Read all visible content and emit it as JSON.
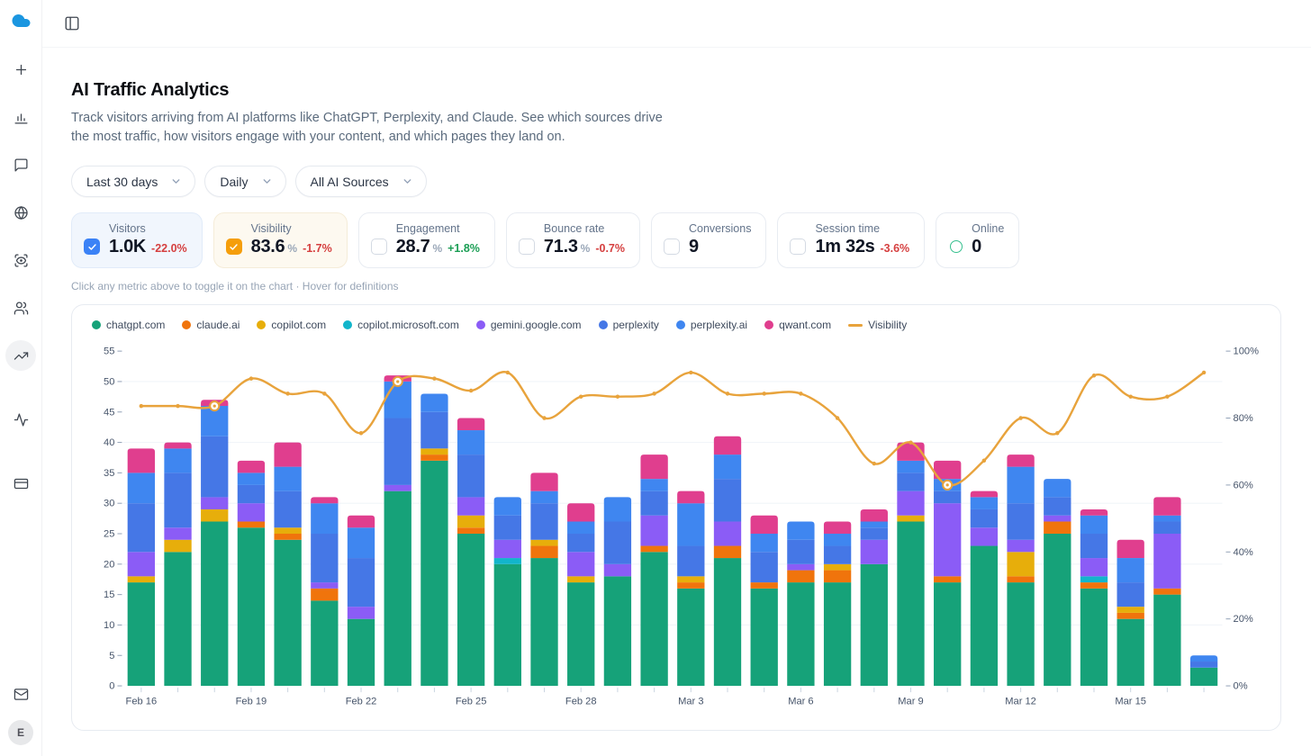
{
  "sidebar": {
    "logo": "cloud-logo",
    "items": [
      {
        "icon": "plus-icon"
      },
      {
        "icon": "bar-chart-icon"
      },
      {
        "icon": "message-icon"
      },
      {
        "icon": "globe-icon"
      },
      {
        "icon": "scan-eye-icon"
      },
      {
        "icon": "users-icon"
      },
      {
        "icon": "trending-up-icon",
        "active": true
      },
      {
        "icon": "activity-icon"
      },
      {
        "icon": "credit-card-icon"
      }
    ],
    "bottom": {
      "mail_icon": "mail-icon",
      "avatar_initial": "E"
    }
  },
  "topbar": {
    "toggle_icon": "panel-left-icon"
  },
  "header": {
    "title": "AI Traffic Analytics",
    "description": "Track visitors arriving from AI platforms like ChatGPT, Perplexity, and Claude. See which sources drive the most traffic, how visitors engage with your content, and which pages they land on."
  },
  "filters": {
    "items": [
      {
        "label": "Last 30 days"
      },
      {
        "label": "Daily"
      },
      {
        "label": "All AI Sources"
      }
    ]
  },
  "metrics": {
    "items": [
      {
        "label": "Visitors",
        "value": "1.0K",
        "delta": "-22.0%",
        "delta_color": "red",
        "selected": true,
        "accent": "#3b82f6"
      },
      {
        "label": "Visibility",
        "value": "83.6",
        "suffix": "%",
        "delta": "-1.7%",
        "delta_color": "red",
        "selected": true,
        "accent": "#f59e0b"
      },
      {
        "label": "Engagement",
        "value": "28.7",
        "suffix": "%",
        "delta": "+1.8%",
        "delta_color": "green",
        "selected": false
      },
      {
        "label": "Bounce rate",
        "value": "71.3",
        "suffix": "%",
        "delta": "-0.7%",
        "delta_color": "red",
        "selected": false
      },
      {
        "label": "Conversions",
        "value": "9",
        "selected": false
      },
      {
        "label": "Session time",
        "value": "1m 32s",
        "delta": "-3.6%",
        "delta_color": "red",
        "selected": false
      },
      {
        "label": "Online",
        "value": "0",
        "indicator": "online",
        "indicator_color": "#37c08f"
      }
    ]
  },
  "hint": {
    "text": "Click any metric above to toggle it on the chart · Hover for definitions"
  },
  "chart_data": {
    "type": "bar",
    "subtype": "stacked-bars-with-line",
    "dates": [
      "Feb 16",
      "Feb 17",
      "Feb 18",
      "Feb 19",
      "Feb 20",
      "Feb 21",
      "Feb 22",
      "Feb 23",
      "Feb 24",
      "Feb 25",
      "Feb 26",
      "Feb 27",
      "Feb 28",
      "Mar 1",
      "Mar 2",
      "Mar 3",
      "Mar 4",
      "Mar 5",
      "Mar 6",
      "Mar 7",
      "Mar 8",
      "Mar 9",
      "Mar 10",
      "Mar 11",
      "Mar 12",
      "Mar 13",
      "Mar 14",
      "Mar 15",
      "Mar 16",
      "Mar 17"
    ],
    "x_label_every": 3,
    "left_axis": {
      "min": 0,
      "max": 55,
      "step": 5
    },
    "right_axis": {
      "min": 0,
      "max": 100,
      "step": 20,
      "suffix": "%"
    },
    "grid_values": [
      10,
      20,
      30,
      40,
      50
    ],
    "series": [
      {
        "name": "chatgpt.com",
        "color": "#16a279",
        "values": [
          17,
          22,
          27,
          26,
          24,
          14,
          11,
          32,
          37,
          25,
          20,
          21,
          17,
          18,
          22,
          16,
          21,
          16,
          17,
          17,
          20,
          27,
          17,
          23,
          17,
          25,
          16,
          11,
          15,
          3
        ]
      },
      {
        "name": "claude.ai",
        "color": "#f0740c",
        "values": [
          0,
          0,
          0,
          1,
          1,
          2,
          0,
          0,
          1,
          1,
          0,
          2,
          0,
          0,
          1,
          1,
          2,
          1,
          2,
          2,
          0,
          0,
          1,
          0,
          1,
          2,
          1,
          1,
          1,
          0
        ]
      },
      {
        "name": "copilot.com",
        "color": "#e7ae0b",
        "values": [
          1,
          2,
          2,
          0,
          1,
          0,
          0,
          0,
          1,
          2,
          0,
          1,
          1,
          0,
          0,
          1,
          0,
          0,
          0,
          1,
          0,
          1,
          0,
          0,
          4,
          0,
          0,
          1,
          0,
          0
        ]
      },
      {
        "name": "copilot.microsoft.com",
        "color": "#12b5cb",
        "values": [
          0,
          0,
          0,
          0,
          0,
          0,
          0,
          0,
          0,
          0,
          1,
          0,
          0,
          0,
          0,
          0,
          0,
          0,
          0,
          0,
          0,
          0,
          0,
          0,
          0,
          0,
          1,
          0,
          0,
          0
        ]
      },
      {
        "name": "gemini.google.com",
        "color": "#8b5cf6",
        "values": [
          4,
          2,
          2,
          3,
          0,
          1,
          2,
          1,
          0,
          3,
          3,
          0,
          4,
          2,
          5,
          0,
          4,
          0,
          1,
          0,
          4,
          4,
          12,
          3,
          2,
          1,
          3,
          0,
          9,
          0
        ]
      },
      {
        "name": "perplexity",
        "color": "#4577e6",
        "values": [
          8,
          9,
          10,
          3,
          6,
          8,
          8,
          11,
          6,
          7,
          4,
          6,
          3,
          7,
          4,
          5,
          7,
          5,
          4,
          3,
          2,
          3,
          2,
          3,
          6,
          3,
          4,
          4,
          2,
          1
        ]
      },
      {
        "name": "perplexity.ai",
        "color": "#3f86f0",
        "values": [
          5,
          4,
          5,
          2,
          4,
          5,
          5,
          6,
          3,
          4,
          3,
          2,
          2,
          4,
          2,
          7,
          4,
          3,
          3,
          2,
          1,
          2,
          2,
          2,
          6,
          3,
          3,
          4,
          1,
          1
        ]
      },
      {
        "name": "qwant.com",
        "color": "#e03e8e",
        "values": [
          4,
          1,
          1,
          2,
          4,
          1,
          2,
          1,
          0,
          2,
          0,
          3,
          3,
          0,
          4,
          2,
          3,
          3,
          0,
          2,
          2,
          3,
          3,
          1,
          2,
          0,
          1,
          3,
          3,
          0
        ]
      }
    ],
    "line": {
      "name": "Visibility",
      "color": "#e8a33c",
      "axis": "right",
      "values": [
        83.6,
        83.6,
        83.6,
        91.8,
        87.3,
        87.3,
        75.5,
        90.9,
        91.8,
        88.2,
        93.6,
        80,
        86.4,
        86.4,
        87.3,
        93.6,
        87.3,
        87.3,
        87.3,
        80,
        66.4,
        72.7,
        60,
        67.3,
        80,
        75.5,
        92.7,
        86.4,
        86.4,
        93.6
      ],
      "highlight_markers": [
        2,
        7,
        22
      ]
    }
  }
}
